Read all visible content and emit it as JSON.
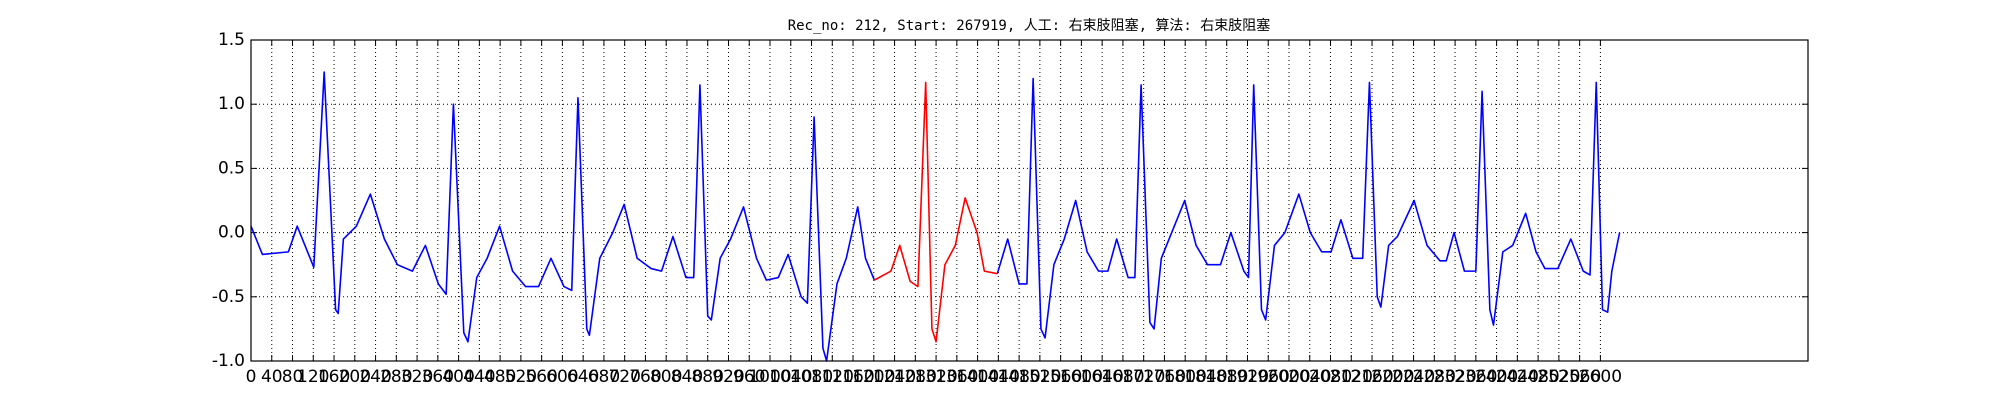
{
  "chart_data": {
    "type": "line",
    "title": "Rec_no: 212, Start: 267919, 人工: 右束肢阻塞, 算法: 右束肢阻塞",
    "xlim": [
      0,
      3000
    ],
    "ylim": [
      -1,
      1.5
    ],
    "yticks": [
      {
        "value": -1,
        "label": "-1.0"
      },
      -0.5,
      {
        "value": 0,
        "label": "0.0"
      },
      0.5,
      {
        "value": 1,
        "label": "1.0"
      },
      1.5
    ],
    "xticks": [
      0,
      40,
      80,
      120,
      160,
      200,
      240,
      280,
      320,
      360,
      400,
      440,
      480,
      520,
      560,
      600,
      640,
      680,
      720,
      760,
      800,
      840,
      880,
      920,
      960,
      1000,
      1040,
      1080,
      1120,
      1160,
      1200,
      1240,
      1280,
      1320,
      1360,
      1400,
      1440,
      1480,
      1520,
      1560,
      1600,
      1640,
      1680,
      1720,
      1760,
      1800,
      1840,
      1880,
      1920,
      1960,
      2000,
      2040,
      2080,
      2120,
      2160,
      2200,
      2240,
      2280,
      2320,
      2360,
      2400,
      2440,
      2480,
      2520,
      2560,
      2600
    ],
    "grid": true,
    "x": [
      0,
      22,
      72,
      89,
      121,
      141,
      163,
      168,
      178,
      203,
      230,
      257,
      282,
      311,
      336,
      361,
      376,
      390,
      410,
      418,
      435,
      455,
      479,
      504,
      529,
      554,
      578,
      603,
      618,
      630,
      647,
      652,
      672,
      697,
      719,
      744,
      771,
      791,
      813,
      838,
      853,
      865,
      880,
      887,
      904,
      924,
      949,
      974,
      993,
      1016,
      1035,
      1060,
      1072,
      1085,
      1102,
      1109,
      1129,
      1147,
      1169,
      1184,
      1201,
      1233,
      1250,
      1270,
      1285,
      1300,
      1312,
      1320,
      1337,
      1357,
      1376,
      1399,
      1413,
      1438,
      1458,
      1480,
      1495,
      1507,
      1522,
      1530,
      1547,
      1567,
      1589,
      1611,
      1633,
      1651,
      1668,
      1690,
      1703,
      1715,
      1732,
      1740,
      1754,
      1774,
      1799,
      1821,
      1843,
      1868,
      1888,
      1913,
      1922,
      1932,
      1947,
      1955,
      1972,
      1992,
      2019,
      2041,
      2063,
      2081,
      2100,
      2123,
      2142,
      2155,
      2170,
      2177,
      2192,
      2209,
      2241,
      2266,
      2291,
      2303,
      2318,
      2338,
      2360,
      2372,
      2387,
      2394,
      2412,
      2431,
      2456,
      2476,
      2493,
      2518,
      2543,
      2567,
      2580,
      2592,
      2604,
      2614,
      2622,
      2637
    ],
    "series": [
      {
        "color": "#0000ff",
        "values": [
          0.05,
          -0.17,
          -0.15,
          0.05,
          -0.27,
          1.25,
          -0.6,
          -0.63,
          -0.05,
          0.05,
          0.3,
          -0.05,
          -0.25,
          -0.3,
          -0.1,
          -0.4,
          -0.48,
          1.0,
          -0.78,
          -0.85,
          -0.35,
          -0.2,
          0.05,
          -0.3,
          -0.42,
          -0.42,
          -0.2,
          -0.42,
          -0.45,
          1.05,
          -0.75,
          -0.8,
          -0.2,
          0.0,
          0.22,
          -0.2,
          -0.28,
          -0.3,
          -0.03,
          -0.35,
          -0.35,
          1.15,
          -0.65,
          -0.68,
          -0.2,
          -0.05,
          0.2,
          -0.2,
          -0.37,
          -0.35,
          -0.17,
          -0.5,
          -0.55,
          0.9,
          -0.9,
          -1.0,
          -0.4,
          -0.2,
          0.2,
          -0.2,
          -0.37,
          null,
          null,
          null,
          null,
          null,
          null,
          null,
          null,
          null,
          null,
          null,
          null,
          -0.32,
          -0.05,
          -0.4,
          -0.4,
          1.2,
          -0.75,
          -0.82,
          -0.25,
          -0.05,
          0.25,
          -0.15,
          -0.3,
          -0.3,
          -0.05,
          -0.35,
          -0.35,
          1.15,
          -0.7,
          -0.75,
          -0.2,
          0.0,
          0.25,
          -0.1,
          -0.25,
          -0.25,
          0.0,
          -0.3,
          -0.35,
          1.15,
          -0.6,
          -0.68,
          -0.1,
          0.0,
          0.3,
          0.0,
          -0.15,
          -0.15,
          0.1,
          -0.2,
          -0.2,
          1.17,
          -0.5,
          -0.58,
          -0.1,
          -0.03,
          0.25,
          -0.1,
          -0.22,
          -0.22,
          0.0,
          -0.3,
          -0.3,
          1.1,
          -0.6,
          -0.72,
          -0.15,
          -0.1,
          0.15,
          -0.15,
          -0.28,
          -0.28,
          -0.05,
          -0.3,
          -0.33,
          1.17,
          -0.6,
          -0.62,
          -0.3,
          0.0
        ]
      },
      {
        "color": "#ff0000",
        "values": [
          null,
          null,
          null,
          null,
          null,
          null,
          null,
          null,
          null,
          null,
          null,
          null,
          null,
          null,
          null,
          null,
          null,
          null,
          null,
          null,
          null,
          null,
          null,
          null,
          null,
          null,
          null,
          null,
          null,
          null,
          null,
          null,
          null,
          null,
          null,
          null,
          null,
          null,
          null,
          null,
          null,
          null,
          null,
          null,
          null,
          null,
          null,
          null,
          null,
          null,
          null,
          null,
          null,
          null,
          null,
          null,
          null,
          null,
          null,
          null,
          -0.37,
          -0.3,
          -0.1,
          -0.38,
          -0.42,
          1.17,
          -0.75,
          -0.85,
          -0.25,
          -0.1,
          0.27,
          0.0,
          -0.3,
          -0.32,
          null,
          null,
          null,
          null,
          null,
          null,
          null,
          null,
          null,
          null,
          null,
          null,
          null,
          null,
          null,
          null,
          null,
          null,
          null,
          null,
          null,
          null,
          null,
          null,
          null,
          null,
          null,
          null,
          null,
          null,
          null,
          null,
          null,
          null,
          null,
          null,
          null,
          null,
          null,
          null,
          null,
          null,
          null,
          null,
          null,
          null,
          null,
          null,
          null,
          null,
          null,
          null,
          null,
          null,
          null,
          null,
          null,
          null,
          null,
          null,
          null,
          null,
          null,
          null,
          null,
          null,
          null,
          null
        ]
      }
    ]
  }
}
